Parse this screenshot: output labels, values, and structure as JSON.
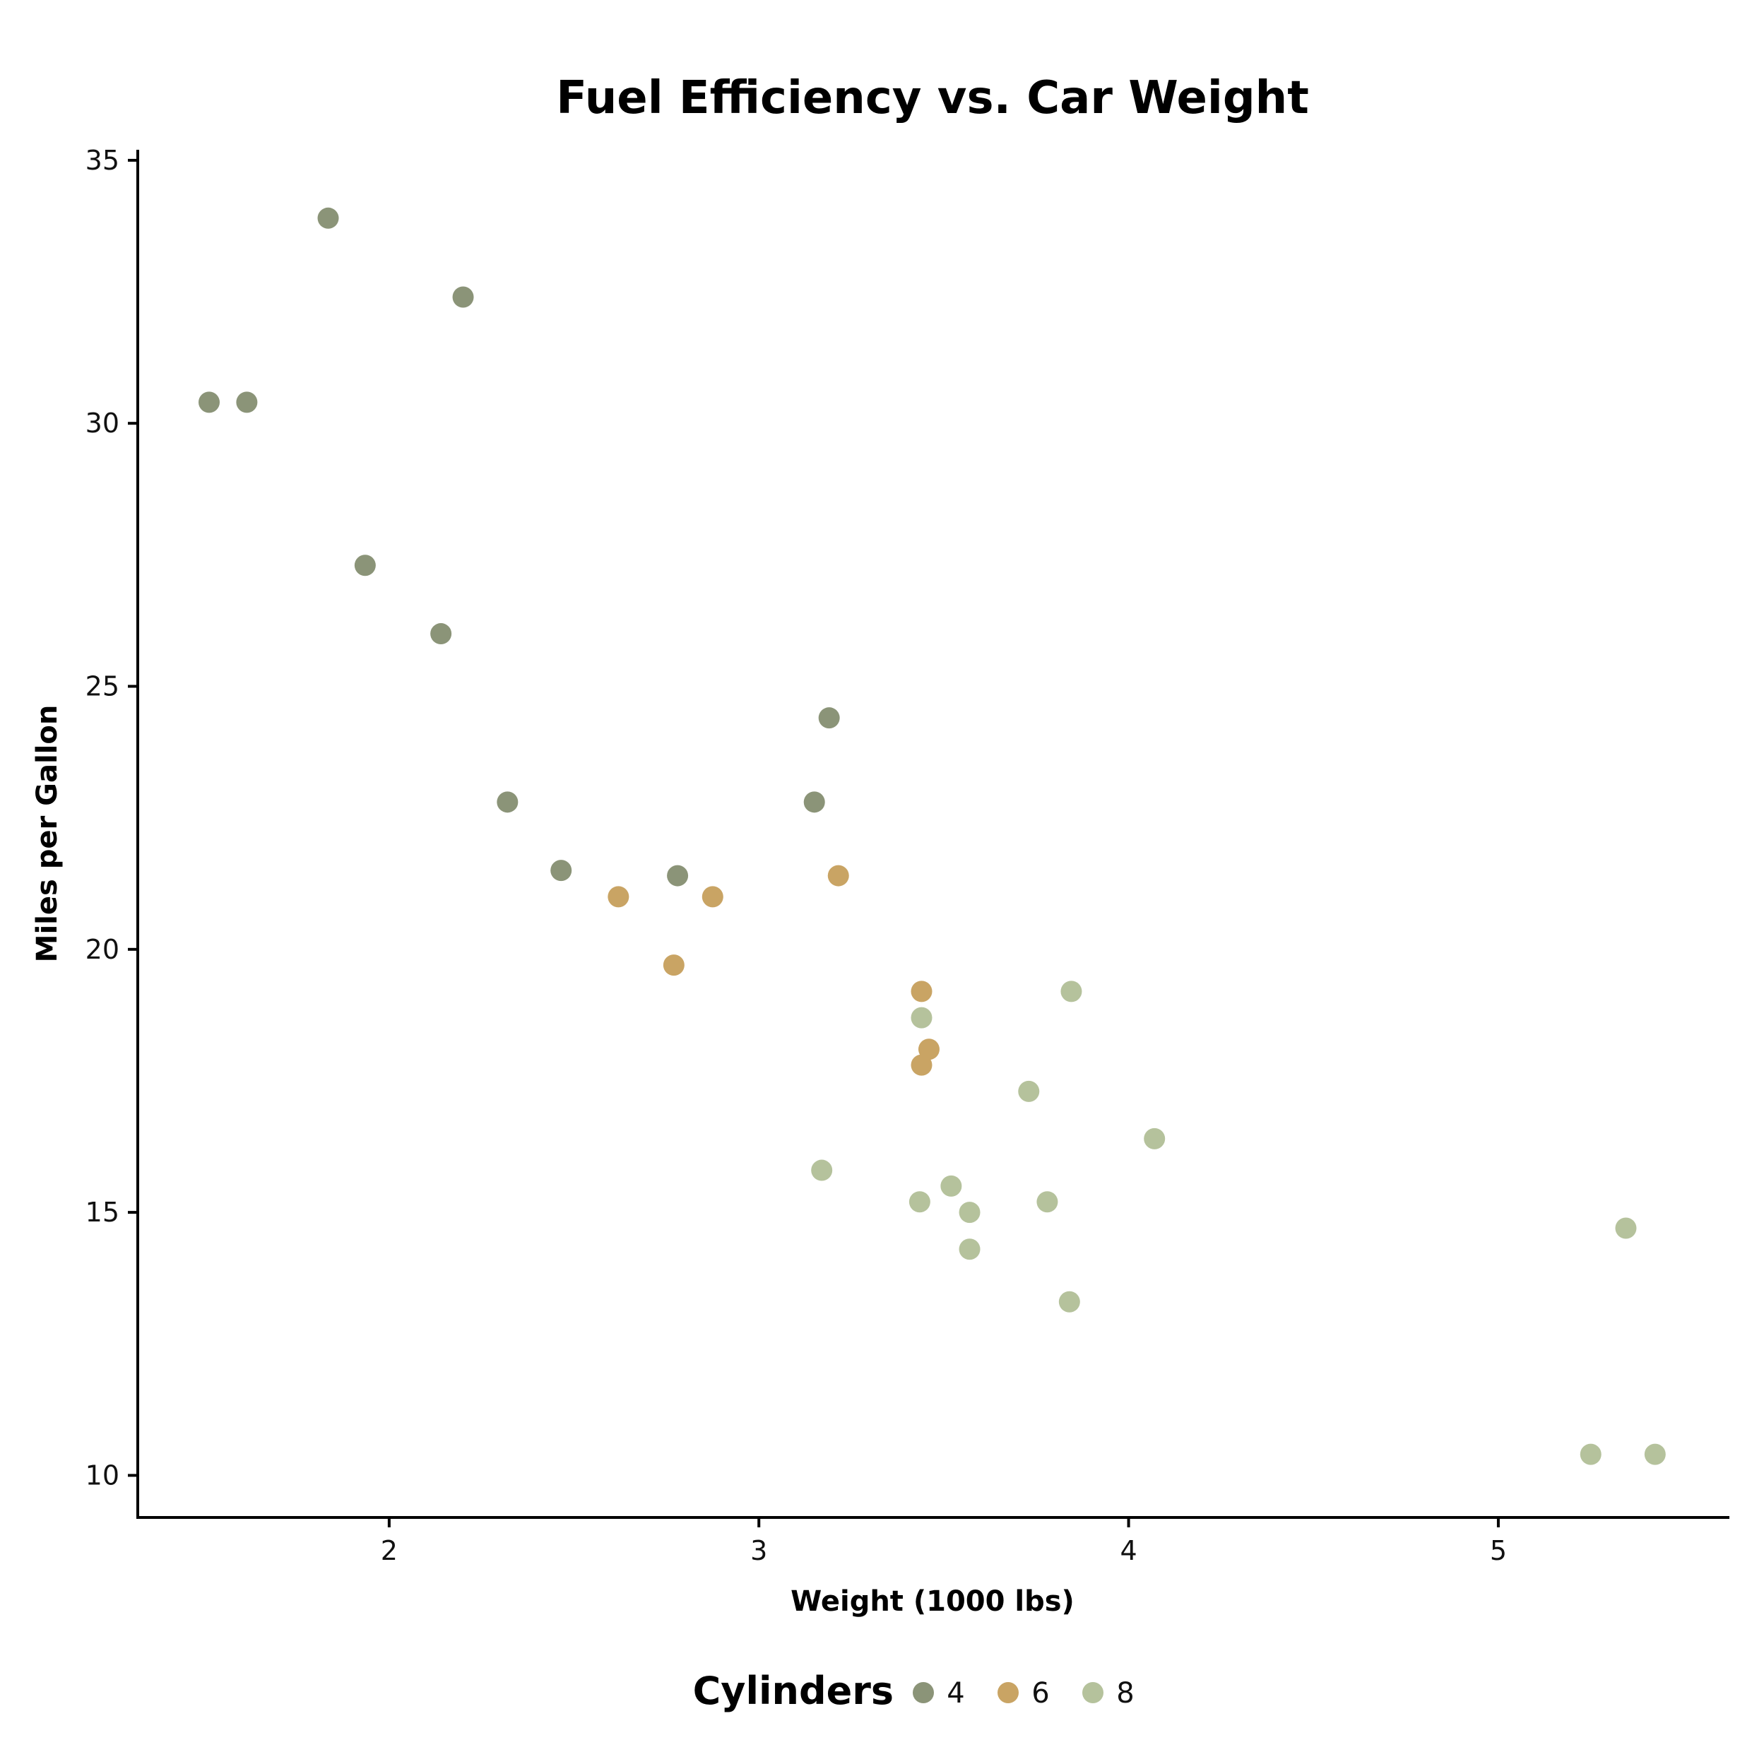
{
  "chart_data": {
    "type": "scatter",
    "title": "Fuel Efficiency vs. Car Weight",
    "xlabel": "Weight (1000 lbs)",
    "ylabel": "Miles per Gallon",
    "xlim": [
      1.32,
      5.625
    ],
    "ylim": [
      9.2,
      35.2
    ],
    "xticks": [
      2,
      3,
      4,
      5
    ],
    "yticks": [
      10,
      15,
      20,
      25,
      30,
      35
    ],
    "grid": false,
    "legend": {
      "title": "Cylinders",
      "position": "bottom"
    },
    "series": [
      {
        "name": "4",
        "color": "#8b9478",
        "points": [
          {
            "x": 1.513,
            "y": 30.4
          },
          {
            "x": 1.615,
            "y": 30.4
          },
          {
            "x": 1.835,
            "y": 33.9
          },
          {
            "x": 1.935,
            "y": 27.3
          },
          {
            "x": 2.14,
            "y": 26.0
          },
          {
            "x": 2.2,
            "y": 32.4
          },
          {
            "x": 2.32,
            "y": 22.8
          },
          {
            "x": 2.465,
            "y": 21.5
          },
          {
            "x": 2.78,
            "y": 21.4
          },
          {
            "x": 3.15,
            "y": 22.8
          },
          {
            "x": 3.19,
            "y": 24.4
          }
        ]
      },
      {
        "name": "6",
        "color": "#c9a464",
        "points": [
          {
            "x": 2.62,
            "y": 21.0
          },
          {
            "x": 2.77,
            "y": 19.7
          },
          {
            "x": 2.875,
            "y": 21.0
          },
          {
            "x": 3.215,
            "y": 21.4
          },
          {
            "x": 3.44,
            "y": 19.2
          },
          {
            "x": 3.44,
            "y": 17.8
          },
          {
            "x": 3.46,
            "y": 18.1
          }
        ]
      },
      {
        "name": "8",
        "color": "#b5c29c",
        "points": [
          {
            "x": 3.17,
            "y": 15.8
          },
          {
            "x": 3.435,
            "y": 15.2
          },
          {
            "x": 3.44,
            "y": 18.7
          },
          {
            "x": 3.52,
            "y": 15.5
          },
          {
            "x": 3.57,
            "y": 15.0
          },
          {
            "x": 3.57,
            "y": 14.3
          },
          {
            "x": 3.73,
            "y": 17.3
          },
          {
            "x": 3.78,
            "y": 15.2
          },
          {
            "x": 3.84,
            "y": 13.3
          },
          {
            "x": 3.845,
            "y": 19.2
          },
          {
            "x": 4.07,
            "y": 16.4
          },
          {
            "x": 5.25,
            "y": 10.4
          },
          {
            "x": 5.345,
            "y": 14.7
          },
          {
            "x": 5.424,
            "y": 10.4
          }
        ]
      }
    ]
  }
}
